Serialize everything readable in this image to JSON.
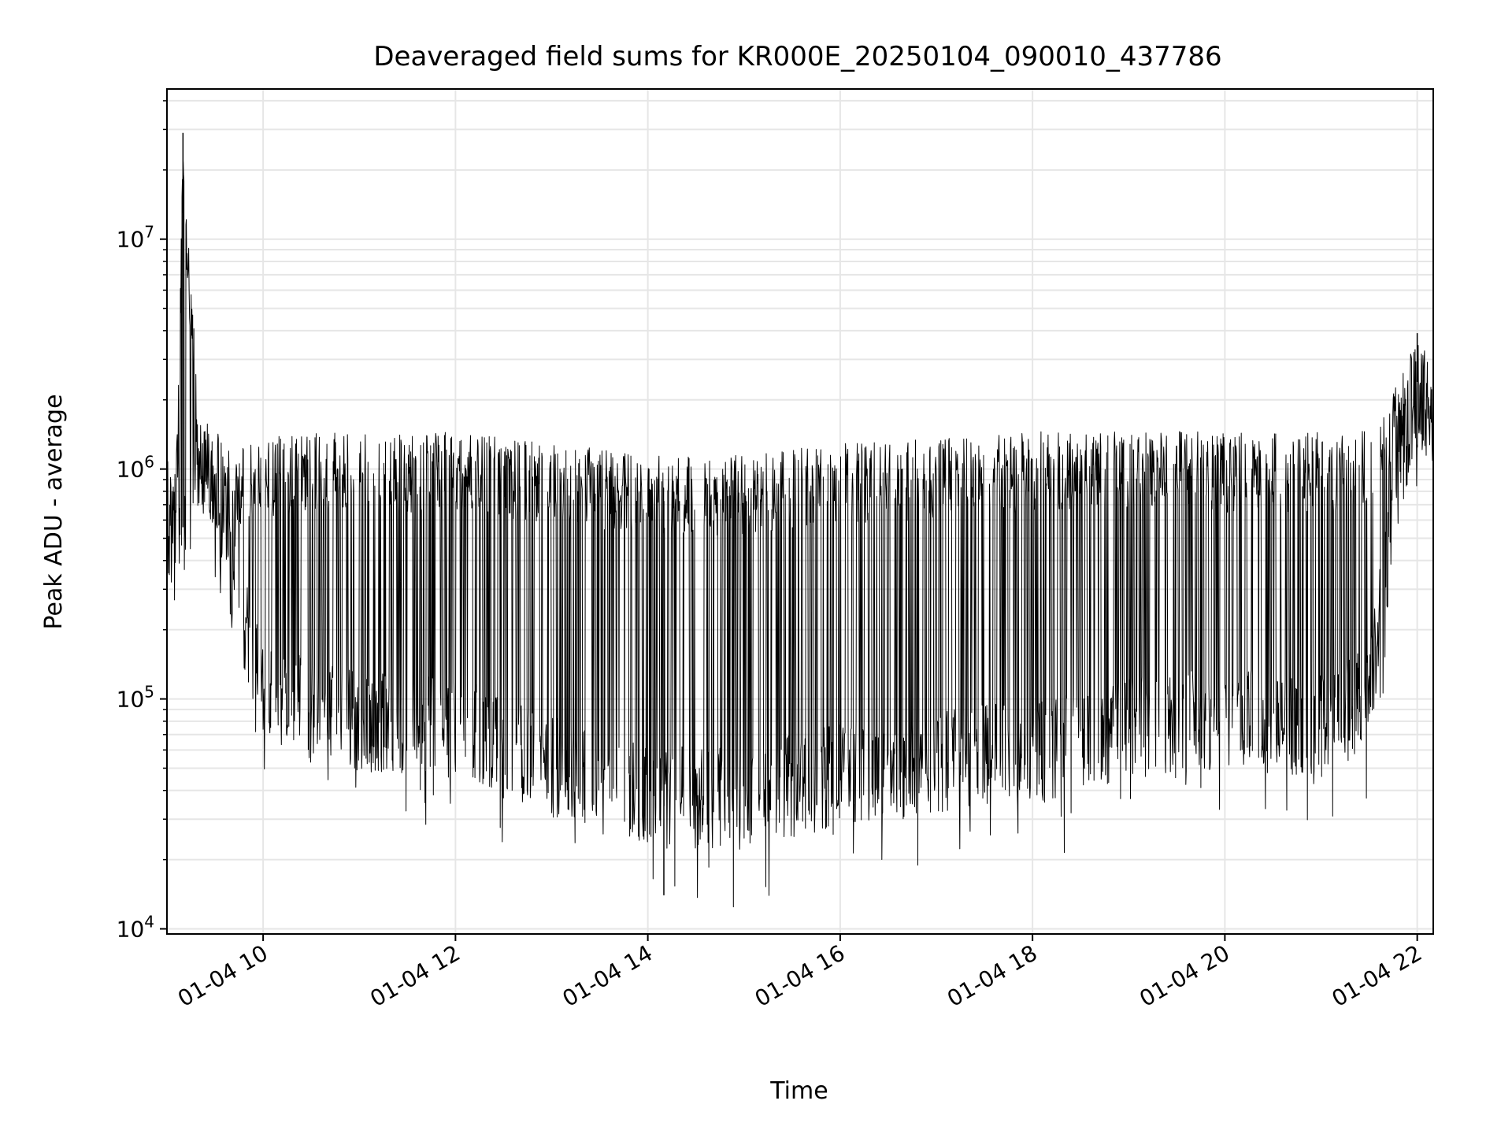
{
  "chart_data": {
    "type": "line",
    "title": "Deaveraged field sums for KR000E_20250104_090010_437786",
    "xlabel": "Time",
    "ylabel": "Peak ADU - average",
    "yscale": "log",
    "ylim": [
      9500,
      45000000
    ],
    "xlim": [
      "01-04 09:00",
      "01-04 22:10"
    ],
    "grid": true,
    "line_color": "#000000",
    "grid_color": "#e6e6e6",
    "x_ticks": [
      {
        "time": "01-04 10:00",
        "label": "01-04 10"
      },
      {
        "time": "01-04 12:00",
        "label": "01-04 12"
      },
      {
        "time": "01-04 14:00",
        "label": "01-04 14"
      },
      {
        "time": "01-04 16:00",
        "label": "01-04 16"
      },
      {
        "time": "01-04 18:00",
        "label": "01-04 18"
      },
      {
        "time": "01-04 20:00",
        "label": "01-04 20"
      },
      {
        "time": "01-04 22:00",
        "label": "01-04 22"
      }
    ],
    "y_ticks": [
      {
        "value": 10000,
        "base": "10",
        "exp": "4"
      },
      {
        "value": 100000,
        "base": "10",
        "exp": "5"
      },
      {
        "value": 1000000,
        "base": "10",
        "exp": "6"
      },
      {
        "value": 10000000,
        "base": "10",
        "exp": "7"
      }
    ],
    "series": [
      {
        "envelope": [
          {
            "time": "01-04 09:00",
            "low": 300000,
            "high": 1100000
          },
          {
            "time": "01-04 09:06",
            "low": 260000,
            "high": 1200000
          },
          {
            "time": "01-04 09:10",
            "low": 280000,
            "high": 29000000
          },
          {
            "time": "01-04 09:20",
            "low": 700000,
            "high": 1700000
          },
          {
            "time": "01-04 09:30",
            "low": 500000,
            "high": 1500000
          },
          {
            "time": "01-04 09:40",
            "low": 200000,
            "high": 1200000
          },
          {
            "time": "01-04 10:00",
            "low": 60000,
            "high": 1400000
          },
          {
            "time": "01-04 11:00",
            "low": 48000,
            "high": 1450000
          },
          {
            "time": "01-04 12:00",
            "low": 45000,
            "high": 1450000
          },
          {
            "time": "01-04 13:00",
            "low": 30000,
            "high": 1300000
          },
          {
            "time": "01-04 14:00",
            "low": 22000,
            "high": 1150000
          },
          {
            "time": "01-04 15:00",
            "low": 22000,
            "high": 1150000
          },
          {
            "time": "01-04 16:00",
            "low": 28000,
            "high": 1300000
          },
          {
            "time": "01-04 17:00",
            "low": 32000,
            "high": 1350000
          },
          {
            "time": "01-04 18:00",
            "low": 35000,
            "high": 1450000
          },
          {
            "time": "01-04 19:00",
            "low": 45000,
            "high": 1500000
          },
          {
            "time": "01-04 20:00",
            "low": 50000,
            "high": 1450000
          },
          {
            "time": "01-04 21:00",
            "low": 45000,
            "high": 1450000
          },
          {
            "time": "01-04 21:30",
            "low": 60000,
            "high": 1500000
          },
          {
            "time": "01-04 21:50",
            "low": 700000,
            "high": 2500000
          },
          {
            "time": "01-04 22:00",
            "low": 1200000,
            "high": 3800000
          },
          {
            "time": "01-04 22:10",
            "low": 1100000,
            "high": 2800000
          }
        ],
        "notable_points": [
          {
            "time": "01-04 09:10",
            "value": 29000000
          },
          {
            "time": "01-04 14:10",
            "value": 14000
          },
          {
            "time": "01-04 22:00",
            "value": 3900000
          }
        ]
      }
    ]
  }
}
